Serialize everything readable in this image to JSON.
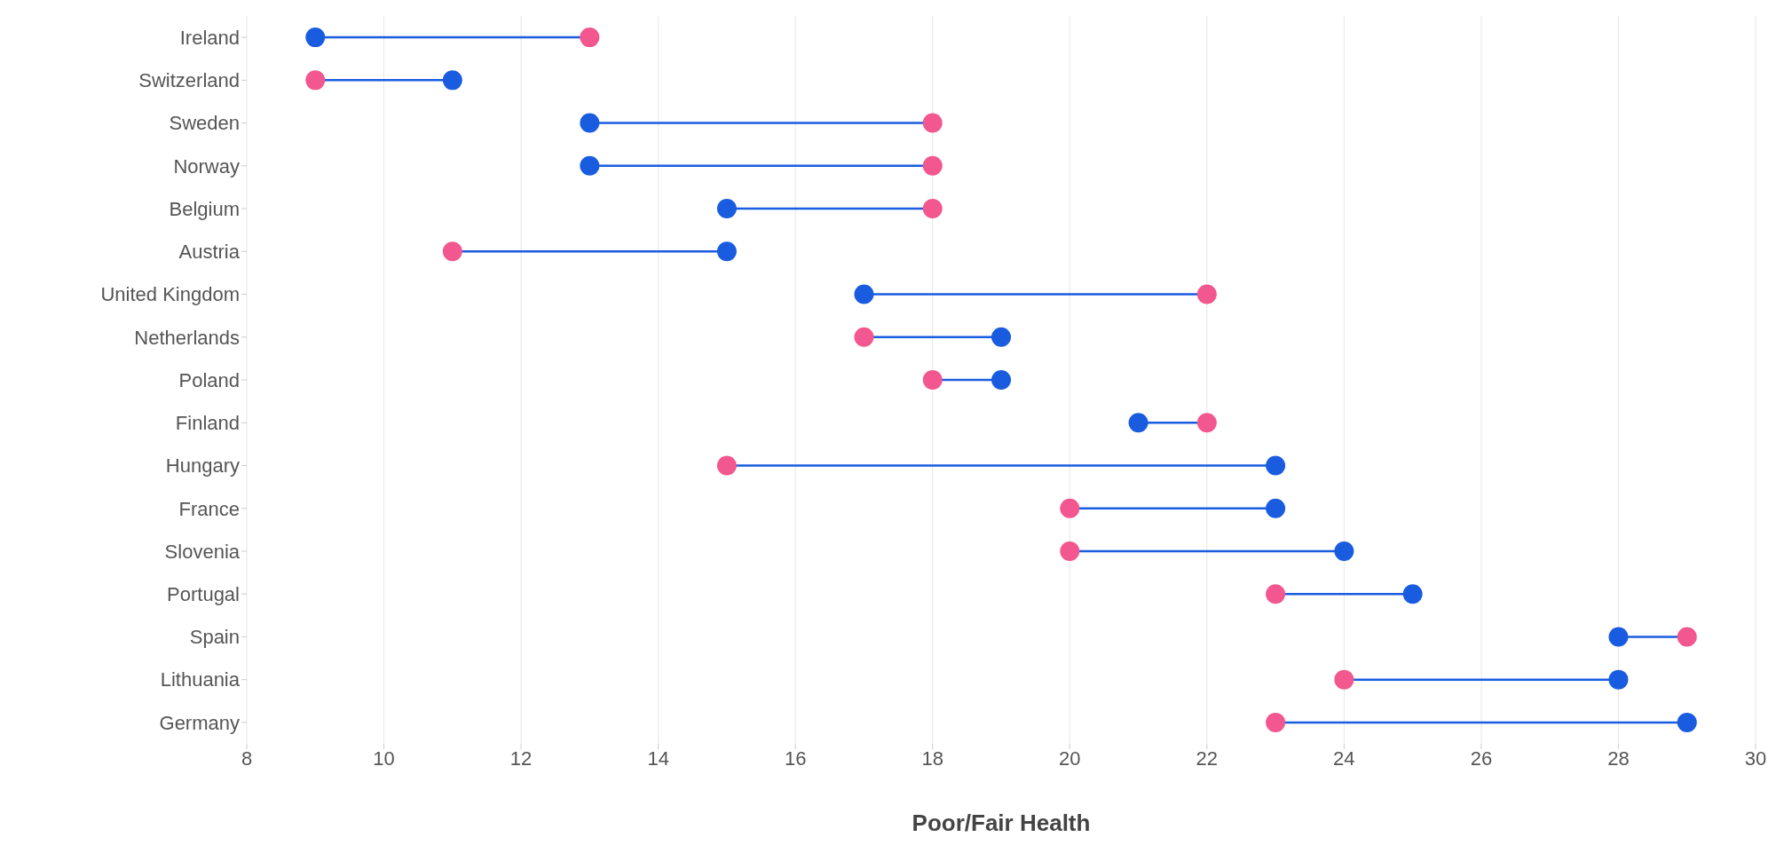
{
  "chart_data": {
    "type": "scatter",
    "orientation": "horizontal",
    "xlabel": "Poor/Fair Health",
    "categories": [
      "Ireland",
      "Switzerland",
      "Sweden",
      "Norway",
      "Belgium",
      "Austria",
      "United Kingdom",
      "Netherlands",
      "Poland",
      "Finland",
      "Hungary",
      "France",
      "Slovenia",
      "Portugal",
      "Spain",
      "Lithuania",
      "Germany"
    ],
    "series": [
      {
        "color": "#1a5ce0",
        "values": [
          9,
          11,
          13,
          13,
          15,
          15,
          17,
          19,
          19,
          21,
          23,
          23,
          24,
          25,
          28,
          28,
          29
        ]
      },
      {
        "color": "#f2578f",
        "values": [
          13,
          9,
          18,
          18,
          18,
          11,
          22,
          17,
          18,
          22,
          15,
          20,
          20,
          23,
          29,
          24,
          23
        ]
      }
    ],
    "xlim": [
      8,
      30
    ],
    "xticks": [
      8,
      10,
      12,
      14,
      16,
      18,
      20,
      22,
      24,
      26,
      28,
      30
    ],
    "grid": "x",
    "marker": "circle"
  }
}
